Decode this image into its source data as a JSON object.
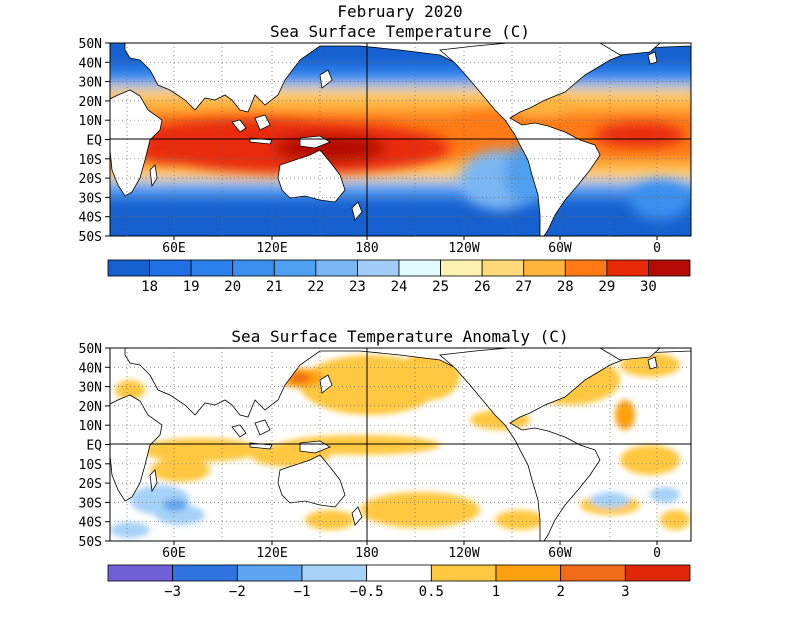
{
  "title": "February 2020",
  "panels": [
    {
      "title": "Sea Surface Temperature (C)",
      "lat_labels": [
        "50N",
        "40N",
        "30N",
        "20N",
        "10N",
        "EQ",
        "10S",
        "20S",
        "30S",
        "40S",
        "50S"
      ],
      "lon_labels": [
        "60E",
        "120E",
        "180",
        "120W",
        "60W",
        "0"
      ],
      "colorbar": {
        "labels": [
          "18",
          "19",
          "20",
          "21",
          "22",
          "23",
          "24",
          "25",
          "26",
          "27",
          "28",
          "29",
          "30"
        ],
        "colors": [
          "#1760d0",
          "#1f6ee2",
          "#2a80ec",
          "#3b90ef",
          "#4f9ff0",
          "#7ab6f3",
          "#a3cdf6",
          "#e2fbff",
          "#fff2b0",
          "#ffd878",
          "#ffb43c",
          "#ff7a14",
          "#e82a0a",
          "#b40a05"
        ]
      }
    },
    {
      "title": "Sea Surface Temperature Anomaly (C)",
      "lat_labels": [
        "50N",
        "40N",
        "30N",
        "20N",
        "10N",
        "EQ",
        "10S",
        "20S",
        "30S",
        "40S",
        "50S"
      ],
      "lon_labels": [
        "60E",
        "120E",
        "180",
        "120W",
        "60W",
        "0"
      ],
      "colorbar": {
        "labels": [
          "-3",
          "-2",
          "-1",
          "-0.5",
          "0.5",
          "1",
          "2",
          "3"
        ],
        "colors": [
          "#7060d8",
          "#2f74e0",
          "#5da5f0",
          "#a6d2f8",
          "#ffffff",
          "#ffc840",
          "#ffa010",
          "#f06a18",
          "#e0280a"
        ]
      }
    }
  ]
}
